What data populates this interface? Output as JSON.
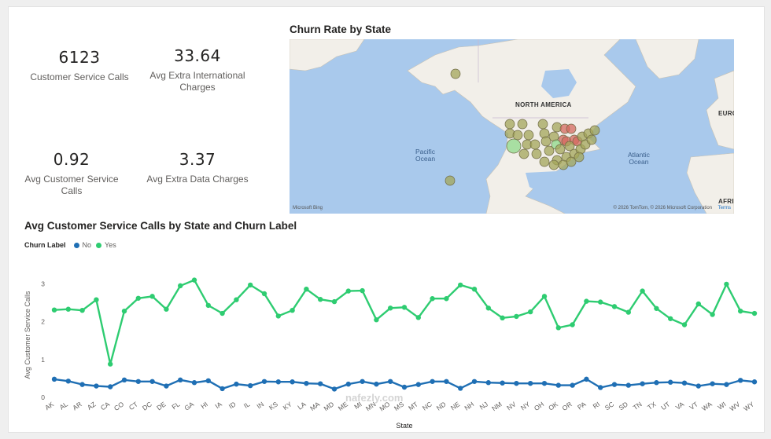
{
  "kpis": [
    {
      "value": "6123",
      "label": "Customer Service Calls"
    },
    {
      "value": "33.64",
      "label": "Avg Extra International Charges"
    },
    {
      "value": "0.92",
      "label": "Avg Customer Service Calls"
    },
    {
      "value": "3.37",
      "label": "Avg Extra Data Charges"
    }
  ],
  "map": {
    "title": "Churn Rate by State",
    "labels": {
      "north_america": "NORTH AMERICA",
      "pacific": "Pacific\nOcean",
      "atlantic": "Atlantic\nOcean",
      "europe": "EURO",
      "africa": "AFRI"
    },
    "attribution": "© 2026 TomTom, © 2026 Microsoft Corporation",
    "terms": "Terms",
    "provider": "Microsoft Bing",
    "colors": {
      "ocean": "#a9c9ec",
      "land": "#f2efe9",
      "low": "#8fd98a",
      "mid": "#a3a55a",
      "high": "#d46a5f"
    }
  },
  "chart_data": {
    "type": "line",
    "title": "Avg Customer Service Calls by State and Churn Label",
    "legend_title": "Churn Label",
    "xlabel": "State",
    "ylabel": "Avg Customer Service Calls",
    "ylim": [
      0,
      3.3
    ],
    "yticks": [
      0,
      1,
      2,
      3
    ],
    "categories": [
      "AK",
      "AL",
      "AR",
      "AZ",
      "CA",
      "CO",
      "CT",
      "DC",
      "DE",
      "FL",
      "GA",
      "HI",
      "IA",
      "ID",
      "IL",
      "IN",
      "KS",
      "KY",
      "LA",
      "MA",
      "MD",
      "ME",
      "MI",
      "MN",
      "MO",
      "MS",
      "MT",
      "NC",
      "ND",
      "NE",
      "NH",
      "NJ",
      "NM",
      "NV",
      "NY",
      "OH",
      "OK",
      "OR",
      "PA",
      "RI",
      "SC",
      "SD",
      "TN",
      "TX",
      "UT",
      "VA",
      "VT",
      "WA",
      "WI",
      "WV",
      "WY"
    ],
    "series": [
      {
        "name": "No",
        "color": "#1f6fb4",
        "values": [
          0.48,
          0.43,
          0.34,
          0.3,
          0.28,
          0.46,
          0.42,
          0.42,
          0.3,
          0.46,
          0.39,
          0.44,
          0.23,
          0.35,
          0.31,
          0.42,
          0.41,
          0.41,
          0.37,
          0.36,
          0.22,
          0.35,
          0.42,
          0.35,
          0.42,
          0.27,
          0.34,
          0.42,
          0.42,
          0.24,
          0.42,
          0.39,
          0.38,
          0.37,
          0.37,
          0.37,
          0.32,
          0.32,
          0.48,
          0.26,
          0.34,
          0.32,
          0.36,
          0.39,
          0.4,
          0.38,
          0.3,
          0.36,
          0.34,
          0.45,
          0.41
        ]
      },
      {
        "name": "Yes",
        "color": "#2ecc71",
        "values": [
          2.31,
          2.33,
          2.3,
          2.58,
          0.88,
          2.28,
          2.62,
          2.67,
          2.33,
          2.95,
          3.1,
          2.43,
          2.22,
          2.58,
          2.97,
          2.74,
          2.15,
          2.3,
          2.86,
          2.59,
          2.53,
          2.81,
          2.82,
          2.05,
          2.36,
          2.38,
          2.11,
          2.61,
          2.61,
          2.97,
          2.86,
          2.36,
          2.1,
          2.14,
          2.26,
          2.67,
          1.84,
          1.92,
          2.54,
          2.52,
          2.4,
          2.25,
          2.81,
          2.35,
          2.08,
          1.92,
          2.47,
          2.19,
          2.99,
          2.28,
          2.22
        ]
      }
    ]
  },
  "watermark": "nafezly.com"
}
